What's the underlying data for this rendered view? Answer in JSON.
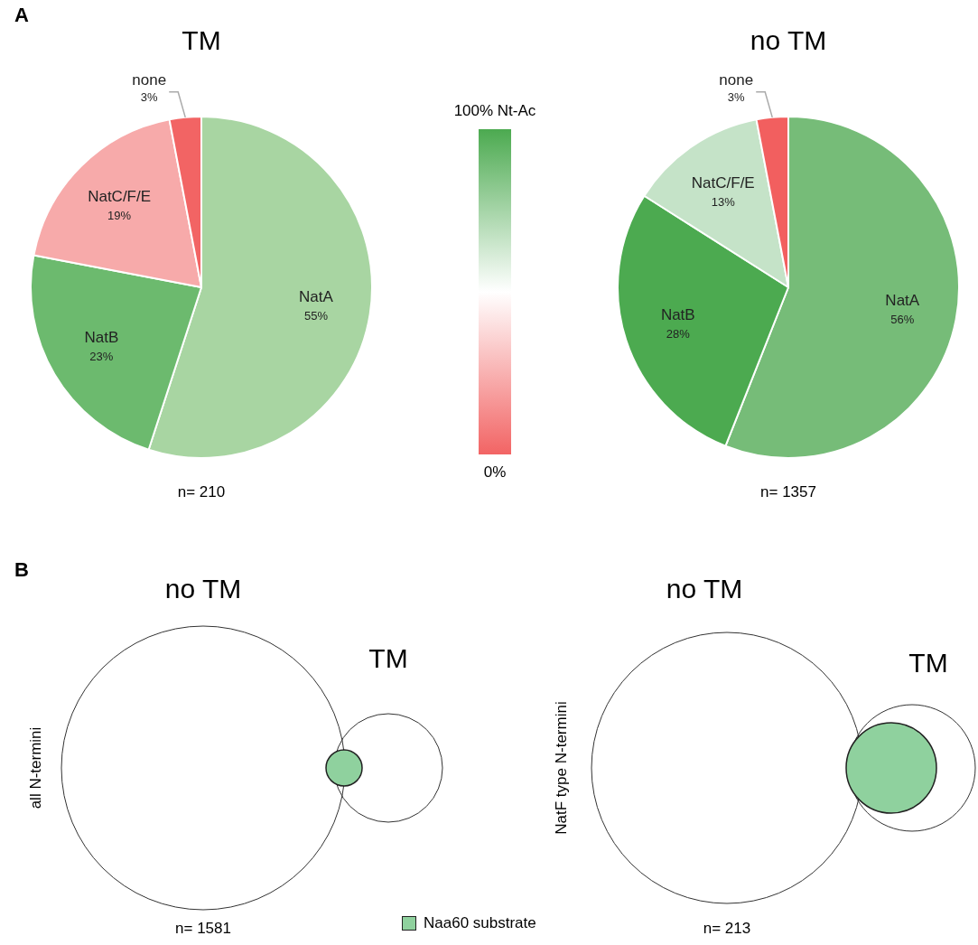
{
  "chart_data": [
    {
      "type": "pie",
      "title": "TM",
      "categories": [
        "NatA",
        "NatB",
        "NatC/F/E",
        "none"
      ],
      "values": [
        55,
        23,
        19,
        3
      ],
      "value_labels": [
        "55%",
        "23%",
        "19%",
        "3%"
      ],
      "colors": [
        "#a8d5a2",
        "#6cba6e",
        "#f7aaaa",
        "#f26464"
      ],
      "annotations": [
        "A",
        "n= 210"
      ]
    },
    {
      "type": "other",
      "annotations": [
        "100% Nt-Ac",
        "0%"
      ]
    },
    {
      "type": "pie",
      "title": "no TM",
      "categories": [
        "NatA",
        "NatB",
        "NatC/F/E",
        "none"
      ],
      "values": [
        56,
        28,
        13,
        3
      ],
      "value_labels": [
        "56%",
        "28%",
        "13%",
        "3%"
      ],
      "colors": [
        "#76bc78",
        "#4caa50",
        "#c5e3c8",
        "#f25f5f"
      ],
      "annotations": [
        "n= 1357"
      ]
    },
    {
      "type": "other",
      "title": "no TM",
      "ylabel": "all N-termini",
      "annotations": [
        "B",
        "TM",
        "n= 1581",
        "Naa60 substrate"
      ]
    },
    {
      "type": "other",
      "title": "no TM",
      "ylabel": "NatF type N-termini",
      "annotations": [
        "TM",
        "n= 213"
      ]
    }
  ]
}
